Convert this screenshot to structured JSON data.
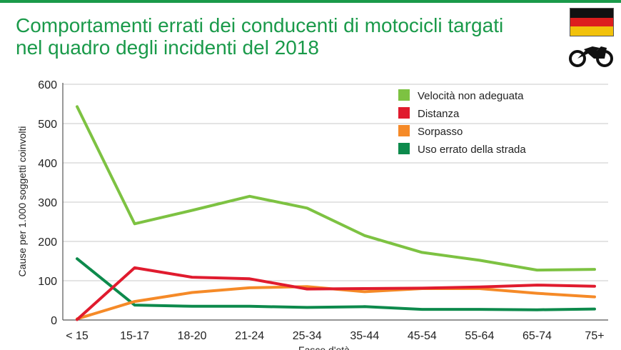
{
  "header": {
    "title_line1": "Comportamenti errati dei conducenti di motocicli targati",
    "title_line2": "nel quadro degli incidenti del 2018"
  },
  "icons": {
    "flag": "germany-flag-icon",
    "vehicle": "motorcycle-icon"
  },
  "flag_colors": [
    "#111111",
    "#dd1e1e",
    "#f2c20b"
  ],
  "chart_data": {
    "type": "line",
    "title": "Comportamenti errati dei conducenti di motocicli targati nel quadro degli incidenti del 2018",
    "xlabel": "Fasce d'età",
    "ylabel": "Cause per 1.000 soggetti coinvolti",
    "categories": [
      "< 15",
      "15-17",
      "18-20",
      "21-24",
      "25-34",
      "35-44",
      "45-54",
      "55-64",
      "65-74",
      "75+"
    ],
    "ylim": [
      0,
      600
    ],
    "yticks": [
      0,
      100,
      200,
      300,
      400,
      500,
      600
    ],
    "grid": true,
    "legend_position": "top-right",
    "series": [
      {
        "name": "Velocità non adeguata",
        "color": "#7dc242",
        "values": [
          543,
          245,
          279,
          315,
          285,
          215,
          172,
          152,
          127,
          129
        ]
      },
      {
        "name": "Distanza",
        "color": "#e01b2e",
        "values": [
          1,
          133,
          109,
          105,
          79,
          80,
          81,
          84,
          89,
          86
        ]
      },
      {
        "name": "Sorpasso",
        "color": "#f58a28",
        "values": [
          3,
          47,
          70,
          82,
          85,
          72,
          80,
          80,
          68,
          59
        ]
      },
      {
        "name": "Uso errato della strada",
        "color": "#0d8a4c",
        "values": [
          156,
          38,
          35,
          35,
          32,
          34,
          27,
          27,
          26,
          28
        ]
      }
    ]
  }
}
